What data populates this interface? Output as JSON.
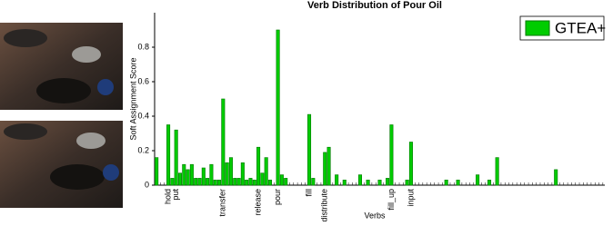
{
  "chart_data": {
    "type": "bar",
    "title": "Verb Distribution of Pour Oil",
    "xlabel": "Verbs",
    "ylabel": "Soft Assignment Score",
    "categories": [
      null,
      null,
      null,
      "hold",
      null,
      "put",
      null,
      null,
      null,
      null,
      null,
      null,
      null,
      null,
      null,
      null,
      null,
      "transfer",
      null,
      null,
      null,
      null,
      null,
      null,
      null,
      null,
      "release",
      null,
      null,
      null,
      null,
      "pour",
      null,
      null,
      null,
      null,
      null,
      null,
      null,
      "fill",
      null,
      null,
      null,
      "distribute",
      null,
      null,
      null,
      null,
      null,
      null,
      null,
      null,
      null,
      null,
      null,
      null,
      null,
      null,
      null,
      null,
      "fill_up",
      null,
      null,
      null,
      null,
      "input",
      null,
      null,
      null,
      null,
      null,
      null,
      null,
      null,
      null,
      null,
      null,
      null,
      null,
      null,
      null,
      null,
      null,
      null,
      null,
      null,
      null,
      null,
      null,
      null,
      null,
      null,
      null,
      null,
      null,
      null,
      null,
      null,
      null,
      null,
      null,
      null,
      null,
      null,
      null,
      null,
      null,
      null,
      null,
      null,
      null,
      null,
      null,
      null,
      null
    ],
    "series": [
      {
        "name": "GTEA+",
        "color": "#00cc00",
        "values": [
          0.16,
          0,
          0,
          0.35,
          0.04,
          0.32,
          0.07,
          0.12,
          0.09,
          0.12,
          0.04,
          0.04,
          0.1,
          0.04,
          0.12,
          0.03,
          0.03,
          0.5,
          0.13,
          0.16,
          0.04,
          0.04,
          0.13,
          0.03,
          0.04,
          0.03,
          0.22,
          0.07,
          0.16,
          0.03,
          0,
          0.9,
          0.06,
          0.04,
          0,
          0,
          0,
          0,
          0,
          0.41,
          0.04,
          0,
          0,
          0.19,
          0.22,
          0,
          0.06,
          0,
          0.03,
          0,
          0,
          0,
          0.06,
          0,
          0.03,
          0,
          0,
          0.03,
          0,
          0.04,
          0.35,
          0,
          0,
          0,
          0.03,
          0.25,
          0,
          0,
          0,
          0,
          0,
          0,
          0,
          0,
          0.03,
          0,
          0,
          0.03,
          0,
          0,
          0,
          0,
          0.06,
          0,
          0,
          0.03,
          0,
          0.16,
          0,
          0,
          0,
          0,
          0,
          0,
          0,
          0,
          0,
          0,
          0,
          0,
          0,
          0,
          0.09,
          0,
          0,
          0,
          0,
          0,
          0,
          0,
          0,
          0,
          0,
          0,
          0
        ]
      }
    ],
    "ylim": [
      0,
      1
    ],
    "yticks": [
      0,
      0.2,
      0.4,
      0.6,
      0.8
    ],
    "legend": "upper right"
  }
}
